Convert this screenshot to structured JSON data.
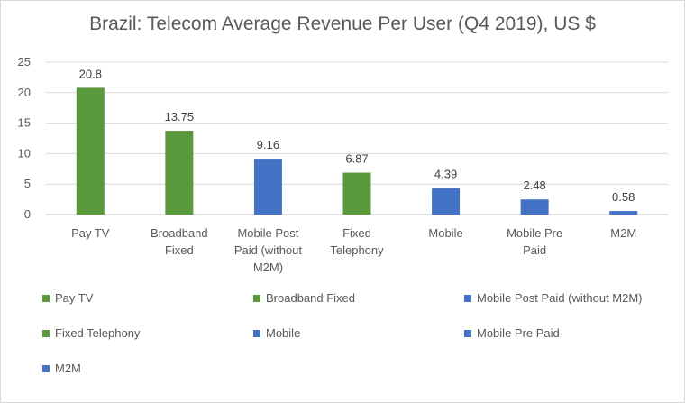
{
  "chart_data": {
    "type": "bar",
    "title": "Brazil: Telecom Average Revenue Per User (Q4 2019), US $",
    "categories": [
      [
        "Pay TV"
      ],
      [
        "Broadband",
        "Fixed"
      ],
      [
        "Mobile Post",
        "Paid (without",
        "M2M)"
      ],
      [
        "Fixed",
        "Telephony"
      ],
      [
        "Mobile"
      ],
      [
        "Mobile Pre",
        "Paid"
      ],
      [
        "M2M"
      ]
    ],
    "values": [
      20.8,
      13.75,
      9.16,
      6.87,
      4.39,
      2.48,
      0.58
    ],
    "value_labels": [
      "20.8",
      "13.75",
      "9.16",
      "6.87",
      "4.39",
      "2.48",
      "0.58"
    ],
    "bar_colors": [
      "#5b9a3c",
      "#5b9a3c",
      "#4472c4",
      "#5b9a3c",
      "#4472c4",
      "#4472c4",
      "#4472c4"
    ],
    "ylim": [
      0,
      25
    ],
    "yticks": [
      "0",
      "5",
      "10",
      "15",
      "20",
      "25"
    ],
    "grid": true,
    "legend_placement": "bottom",
    "legend": [
      {
        "label": "Pay TV",
        "color": "#5b9a3c"
      },
      {
        "label": "Broadband Fixed",
        "color": "#5b9a3c"
      },
      {
        "label": "Mobile Post Paid (without M2M)",
        "color": "#4472c4"
      },
      {
        "label": "Fixed Telephony",
        "color": "#5b9a3c"
      },
      {
        "label": "Mobile",
        "color": "#4472c4"
      },
      {
        "label": "Mobile Pre Paid",
        "color": "#4472c4"
      },
      {
        "label": "M2M",
        "color": "#4472c4"
      }
    ]
  }
}
